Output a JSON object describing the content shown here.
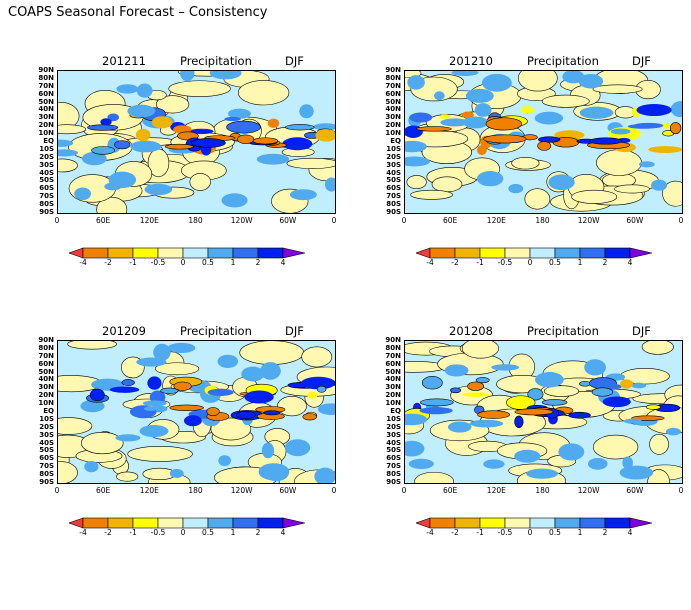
{
  "title": "COAPS Seasonal Forecast – Consistency",
  "panels": [
    {
      "date": "201211",
      "variable": "Precipitation",
      "season": "DJF"
    },
    {
      "date": "201210",
      "variable": "Precipitation",
      "season": "DJF"
    },
    {
      "date": "201209",
      "variable": "Precipitation",
      "season": "DJF"
    },
    {
      "date": "201208",
      "variable": "Precipitation",
      "season": "DJF"
    }
  ],
  "lat_labels": [
    "90N",
    "80N",
    "70N",
    "60N",
    "50N",
    "40N",
    "30N",
    "20N",
    "10N",
    "EQ",
    "10S",
    "20S",
    "30S",
    "40S",
    "50S",
    "60S",
    "70S",
    "80S",
    "90S"
  ],
  "lon_labels": [
    "0",
    "60E",
    "120E",
    "180",
    "120W",
    "60W",
    "0"
  ],
  "colorbar": {
    "levels": [
      "-4",
      "-2",
      "-1",
      "-0.5",
      "0",
      "0.5",
      "1",
      "2",
      "4"
    ],
    "colors": [
      "#f03c3c",
      "#f08000",
      "#f0b400",
      "#ffff00",
      "#fff8b0",
      "#c0eeff",
      "#50aaf0",
      "#3070f0",
      "#0020f0",
      "#8000e0"
    ]
  }
}
